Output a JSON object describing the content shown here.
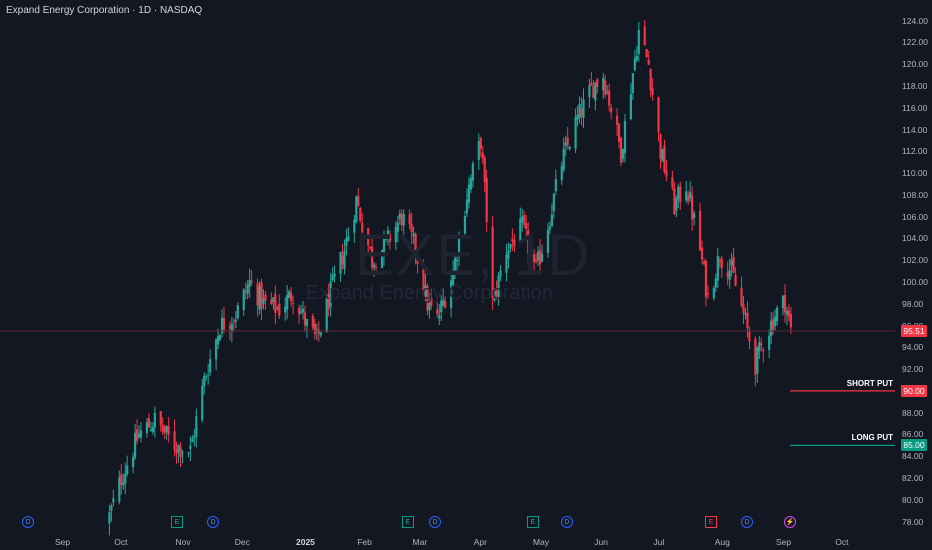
{
  "header": {
    "title": "Expand Energy Corporation · 1D · NASDAQ"
  },
  "watermark": {
    "symbol": "EXE, 1D",
    "name": "Expand Energy Corporation"
  },
  "colors": {
    "up": "#26a69a",
    "down": "#f23645",
    "short_put": "#f23645",
    "long_put": "#089981",
    "last_price": "#f23645",
    "background": "#131722"
  },
  "chart_data": {
    "type": "candlestick",
    "title": "Expand Energy Corporation · 1D · NASDAQ",
    "y_ticks": [
      "124.00",
      "122.00",
      "120.00",
      "118.00",
      "116.00",
      "114.00",
      "112.00",
      "110.00",
      "108.00",
      "106.00",
      "104.00",
      "102.00",
      "100.00",
      "98.00",
      "96.00",
      "94.00",
      "92.00",
      "90.00",
      "88.00",
      "86.00",
      "84.00",
      "82.00",
      "80.00",
      "78.00"
    ],
    "x_ticks": [
      "Sep",
      "Oct",
      "Nov",
      "Dec",
      "2025",
      "Feb",
      "Mar",
      "Apr",
      "May",
      "Jun",
      "Jul",
      "Aug",
      "Sep",
      "Oct"
    ],
    "ylim": [
      77.5,
      124.8
    ],
    "last_price": {
      "value": 95.51,
      "label": "95.51"
    },
    "levels": [
      {
        "name": "SHORT PUT",
        "value": 90.0,
        "label": "90.00"
      },
      {
        "name": "LONG PUT",
        "value": 85.0,
        "label": "85.00"
      }
    ],
    "event_markers": [
      {
        "type": "dividend",
        "label": "D",
        "month": "Aug-2024"
      },
      {
        "type": "earnings",
        "label": "E",
        "month": "Oct-2024"
      },
      {
        "type": "dividend",
        "label": "D",
        "month": "Nov-2024"
      },
      {
        "type": "earnings",
        "label": "E",
        "month": "Feb-2025"
      },
      {
        "type": "dividend",
        "label": "D",
        "month": "Mar-2025"
      },
      {
        "type": "earnings",
        "label": "E",
        "month": "Apr-2025"
      },
      {
        "type": "dividend",
        "label": "D",
        "month": "May-2025"
      },
      {
        "type": "earnings",
        "label": "E",
        "month": "Jul-2025"
      },
      {
        "type": "dividend",
        "label": "D",
        "month": "Aug-2025"
      },
      {
        "type": "split",
        "label": "⚡",
        "month": "Sep-2025"
      }
    ],
    "price_path": [
      {
        "date": "2024-09-25",
        "close": 78.5
      },
      {
        "date": "2024-10-01",
        "close": 82.0
      },
      {
        "date": "2024-10-10",
        "close": 86.0
      },
      {
        "date": "2024-10-18",
        "close": 87.3
      },
      {
        "date": "2024-10-28",
        "close": 85.0
      },
      {
        "date": "2024-11-05",
        "close": 84.5
      },
      {
        "date": "2024-11-12",
        "close": 91.0
      },
      {
        "date": "2024-11-20",
        "close": 96.0
      },
      {
        "date": "2024-11-28",
        "close": 97.0
      },
      {
        "date": "2024-12-05",
        "close": 100.0
      },
      {
        "date": "2024-12-12",
        "close": 98.0
      },
      {
        "date": "2024-12-20",
        "close": 97.5
      },
      {
        "date": "2024-12-27",
        "close": 99.0
      },
      {
        "date": "2025-01-03",
        "close": 96.0
      },
      {
        "date": "2025-01-08",
        "close": 94.6
      },
      {
        "date": "2025-01-15",
        "close": 99.0
      },
      {
        "date": "2025-01-22",
        "close": 103.0
      },
      {
        "date": "2025-01-28",
        "close": 107.5
      },
      {
        "date": "2025-02-05",
        "close": 102.0
      },
      {
        "date": "2025-02-12",
        "close": 103.5
      },
      {
        "date": "2025-02-20",
        "close": 106.0
      },
      {
        "date": "2025-02-27",
        "close": 103.0
      },
      {
        "date": "2025-03-05",
        "close": 98.0
      },
      {
        "date": "2025-03-10",
        "close": 96.5
      },
      {
        "date": "2025-03-18",
        "close": 101.0
      },
      {
        "date": "2025-03-25",
        "close": 108.0
      },
      {
        "date": "2025-04-01",
        "close": 113.0
      },
      {
        "date": "2025-04-04",
        "close": 106.0
      },
      {
        "date": "2025-04-07",
        "close": 98.0
      },
      {
        "date": "2025-04-14",
        "close": 103.0
      },
      {
        "date": "2025-04-22",
        "close": 105.0
      },
      {
        "date": "2025-04-29",
        "close": 101.0
      },
      {
        "date": "2025-05-06",
        "close": 106.0
      },
      {
        "date": "2025-05-12",
        "close": 111.0
      },
      {
        "date": "2025-05-20",
        "close": 115.0
      },
      {
        "date": "2025-05-28",
        "close": 118.0
      },
      {
        "date": "2025-06-02",
        "close": 119.0
      },
      {
        "date": "2025-06-06",
        "close": 116.0
      },
      {
        "date": "2025-06-11",
        "close": 112.0
      },
      {
        "date": "2025-06-16",
        "close": 118.0
      },
      {
        "date": "2025-06-20",
        "close": 123.0
      },
      {
        "date": "2025-06-25",
        "close": 120.0
      },
      {
        "date": "2025-07-01",
        "close": 112.0
      },
      {
        "date": "2025-07-08",
        "close": 107.0
      },
      {
        "date": "2025-07-14",
        "close": 109.0
      },
      {
        "date": "2025-07-21",
        "close": 103.0
      },
      {
        "date": "2025-07-25",
        "close": 98.5
      },
      {
        "date": "2025-07-31",
        "close": 102.5
      },
      {
        "date": "2025-08-06",
        "close": 101.0
      },
      {
        "date": "2025-08-12",
        "close": 97.0
      },
      {
        "date": "2025-08-18",
        "close": 92.5
      },
      {
        "date": "2025-08-22",
        "close": 94.5
      },
      {
        "date": "2025-08-28",
        "close": 97.0
      },
      {
        "date": "2025-09-02",
        "close": 98.3
      },
      {
        "date": "2025-09-05",
        "close": 95.51
      }
    ]
  }
}
